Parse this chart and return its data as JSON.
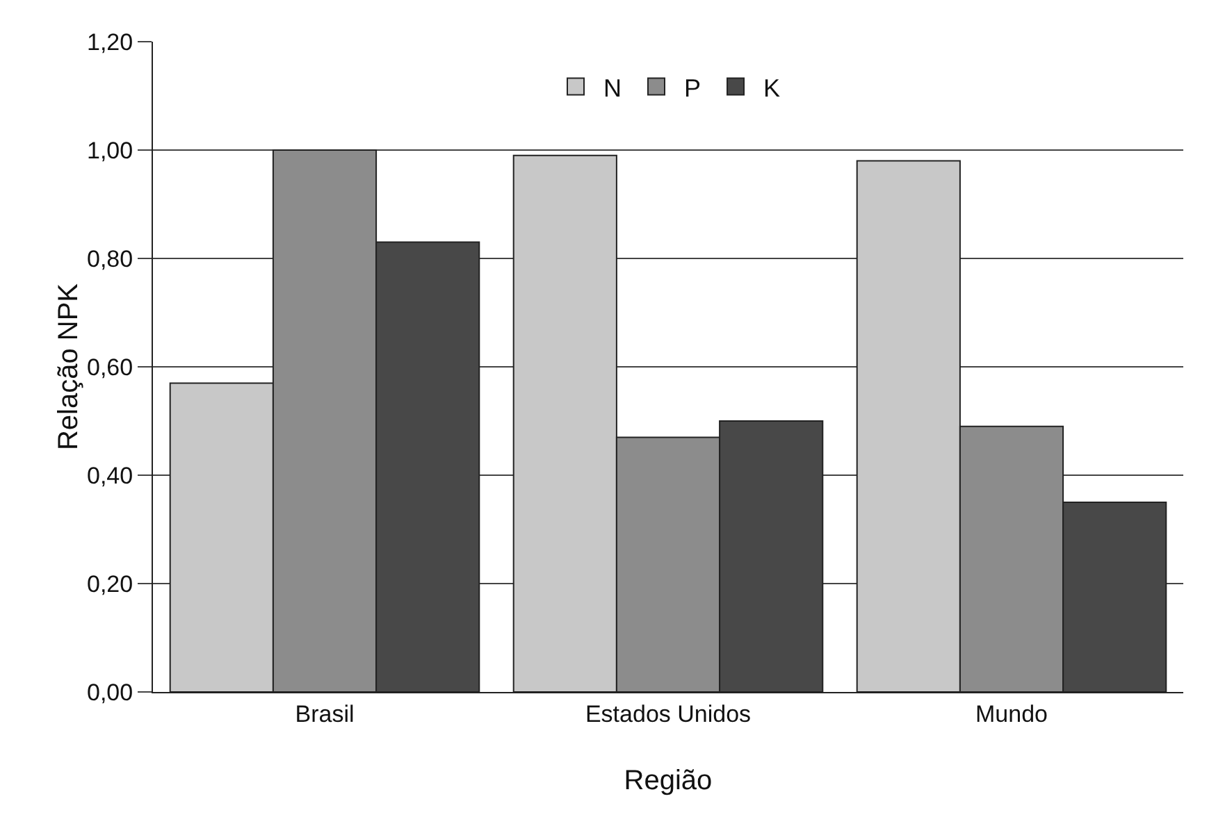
{
  "chart_data": {
    "type": "bar",
    "xlabel": "Região",
    "ylabel": "Relação NPK",
    "categories": [
      "Brasil",
      "Estados Unidos",
      "Mundo"
    ],
    "series": [
      {
        "name": "N",
        "color": "#c8c8c8",
        "values": [
          0.57,
          0.99,
          0.98
        ]
      },
      {
        "name": "P",
        "color": "#8c8c8c",
        "values": [
          1.0,
          0.47,
          0.49
        ]
      },
      {
        "name": "K",
        "color": "#484848",
        "values": [
          0.83,
          0.5,
          0.35
        ]
      }
    ],
    "ylim": [
      0,
      1.2
    ],
    "yticks": [
      {
        "value": 0,
        "label": "0,00"
      },
      {
        "value": 0.2,
        "label": "0,20"
      },
      {
        "value": 0.4,
        "label": "0,40"
      },
      {
        "value": 0.6,
        "label": "0,60"
      },
      {
        "value": 0.8,
        "label": "0,80"
      },
      {
        "value": 1.0,
        "label": "1,00"
      },
      {
        "value": 1.2,
        "label": "1,20"
      }
    ],
    "grid": "y",
    "legend": "top"
  }
}
